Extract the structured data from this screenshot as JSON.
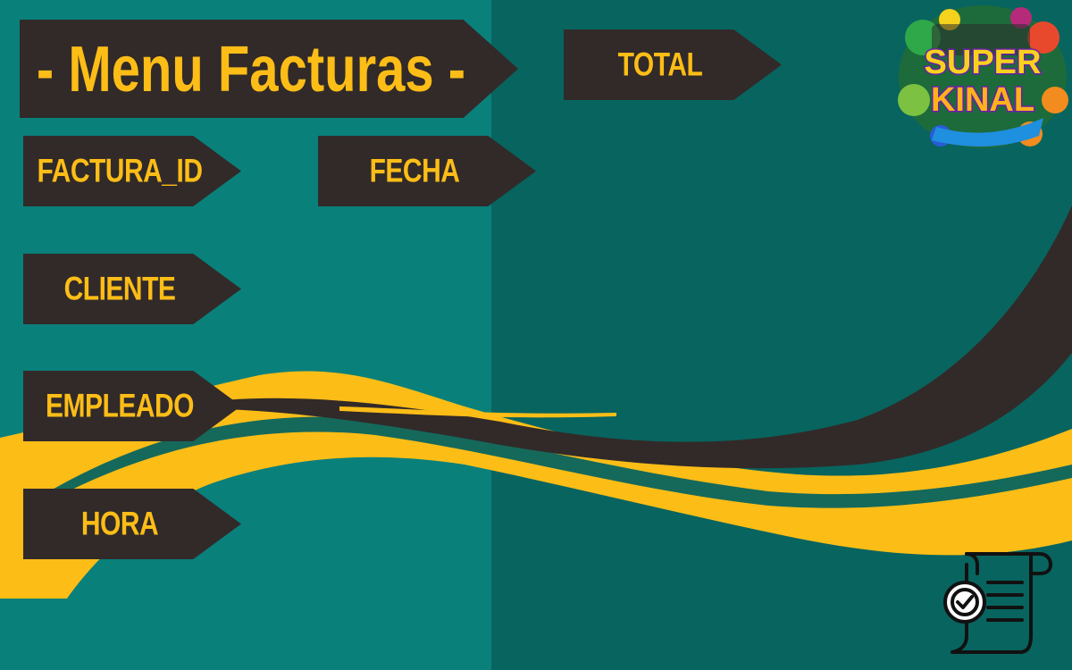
{
  "title": "- Menu Facturas -",
  "fields": {
    "total": "TOTAL",
    "factura_id": "FACTURA_ID",
    "fecha": "FECHA",
    "cliente": "CLIENTE",
    "empleado": "EMPLEADO",
    "hora": "HORA"
  },
  "logo": {
    "line1": "SUPER",
    "line2": "KINAL"
  },
  "icons": {
    "receipt": "receipt-check-icon"
  },
  "colors": {
    "teal_light": "#0a807b",
    "teal_dark": "#08645f",
    "tag_dark": "#312a29",
    "accent_yellow": "#fdbd17"
  }
}
